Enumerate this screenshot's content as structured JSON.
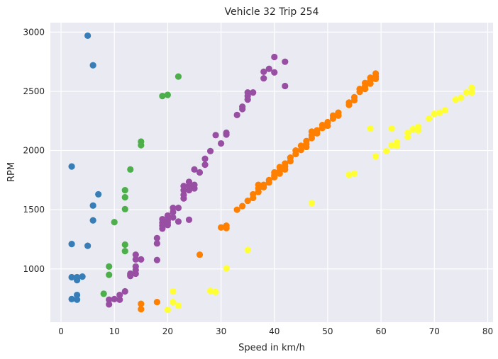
{
  "chart_data": {
    "type": "scatter",
    "title": "Vehicle 32 Trip 254",
    "xlabel": "Speed in km/h",
    "ylabel": "RPM",
    "xlim": [
      -2,
      81
    ],
    "ylim": [
      550,
      3080
    ],
    "xticks": [
      0,
      10,
      20,
      30,
      40,
      50,
      60,
      70,
      80
    ],
    "yticks": [
      1000,
      1500,
      2000,
      2500,
      3000
    ],
    "grid": true,
    "background": "#EAEAF2",
    "series": [
      {
        "color": "#377EB8",
        "points": [
          [
            2,
            1865
          ],
          [
            2,
            1210
          ],
          [
            2,
            930
          ],
          [
            2,
            745
          ],
          [
            3,
            930
          ],
          [
            3,
            905
          ],
          [
            3,
            780
          ],
          [
            3,
            740
          ],
          [
            4,
            935
          ],
          [
            5,
            2970
          ],
          [
            5,
            1195
          ],
          [
            6,
            2720
          ],
          [
            6,
            1535
          ],
          [
            6,
            1410
          ],
          [
            7,
            1630
          ]
        ]
      },
      {
        "color": "#4DAF4A",
        "points": [
          [
            8,
            790
          ],
          [
            9,
            1020
          ],
          [
            9,
            950
          ],
          [
            10,
            1395
          ],
          [
            12,
            1665
          ],
          [
            12,
            1605
          ],
          [
            12,
            1505
          ],
          [
            12,
            1205
          ],
          [
            12,
            1150
          ],
          [
            13,
            1840
          ],
          [
            15,
            2075
          ],
          [
            15,
            2045
          ],
          [
            19,
            2460
          ],
          [
            20,
            2470
          ],
          [
            22,
            2625
          ]
        ]
      },
      {
        "color": "#984EA3",
        "points": [
          [
            9,
            740
          ],
          [
            9,
            700
          ],
          [
            10,
            745
          ],
          [
            11,
            780
          ],
          [
            11,
            740
          ],
          [
            12,
            810
          ],
          [
            13,
            960
          ],
          [
            13,
            950
          ],
          [
            13,
            940
          ],
          [
            14,
            1120
          ],
          [
            14,
            1080
          ],
          [
            14,
            1020
          ],
          [
            14,
            990
          ],
          [
            14,
            960
          ],
          [
            15,
            1080
          ],
          [
            18,
            1260
          ],
          [
            18,
            1215
          ],
          [
            18,
            1075
          ],
          [
            19,
            1420
          ],
          [
            19,
            1390
          ],
          [
            19,
            1365
          ],
          [
            19,
            1340
          ],
          [
            20,
            1450
          ],
          [
            20,
            1410
          ],
          [
            20,
            1390
          ],
          [
            20,
            1370
          ],
          [
            21,
            1515
          ],
          [
            21,
            1480
          ],
          [
            21,
            1435
          ],
          [
            22,
            1515
          ],
          [
            22,
            1400
          ],
          [
            23,
            1700
          ],
          [
            23,
            1665
          ],
          [
            23,
            1625
          ],
          [
            23,
            1595
          ],
          [
            24,
            1735
          ],
          [
            24,
            1700
          ],
          [
            24,
            1665
          ],
          [
            24,
            1415
          ],
          [
            25,
            1840
          ],
          [
            25,
            1710
          ],
          [
            25,
            1680
          ],
          [
            26,
            1815
          ],
          [
            27,
            1930
          ],
          [
            27,
            1880
          ],
          [
            28,
            1995
          ],
          [
            29,
            2130
          ],
          [
            30,
            2060
          ],
          [
            31,
            2150
          ],
          [
            31,
            2135
          ],
          [
            33,
            2300
          ],
          [
            34,
            2370
          ],
          [
            34,
            2350
          ],
          [
            35,
            2490
          ],
          [
            35,
            2460
          ],
          [
            35,
            2430
          ],
          [
            36,
            2490
          ],
          [
            38,
            2665
          ],
          [
            38,
            2610
          ],
          [
            39,
            2690
          ],
          [
            40,
            2790
          ],
          [
            40,
            2660
          ],
          [
            42,
            2750
          ],
          [
            42,
            2545
          ]
        ]
      },
      {
        "color": "#FF7F00",
        "points": [
          [
            15,
            705
          ],
          [
            15,
            660
          ],
          [
            18,
            720
          ],
          [
            26,
            1120
          ],
          [
            30,
            1350
          ],
          [
            31,
            1365
          ],
          [
            31,
            1345
          ],
          [
            33,
            1500
          ],
          [
            34,
            1530
          ],
          [
            35,
            1575
          ],
          [
            36,
            1630
          ],
          [
            36,
            1600
          ],
          [
            37,
            1710
          ],
          [
            37,
            1680
          ],
          [
            37,
            1650
          ],
          [
            38,
            1710
          ],
          [
            38,
            1690
          ],
          [
            39,
            1750
          ],
          [
            39,
            1730
          ],
          [
            40,
            1815
          ],
          [
            40,
            1790
          ],
          [
            40,
            1775
          ],
          [
            41,
            1860
          ],
          [
            41,
            1830
          ],
          [
            41,
            1805
          ],
          [
            42,
            1890
          ],
          [
            42,
            1865
          ],
          [
            42,
            1840
          ],
          [
            43,
            1940
          ],
          [
            43,
            1910
          ],
          [
            44,
            2000
          ],
          [
            44,
            1970
          ],
          [
            45,
            2040
          ],
          [
            45,
            2005
          ],
          [
            46,
            2080
          ],
          [
            46,
            2055
          ],
          [
            46,
            2030
          ],
          [
            47,
            2160
          ],
          [
            47,
            2130
          ],
          [
            47,
            2105
          ],
          [
            48,
            2170
          ],
          [
            48,
            2145
          ],
          [
            49,
            2215
          ],
          [
            49,
            2190
          ],
          [
            50,
            2240
          ],
          [
            50,
            2210
          ],
          [
            51,
            2295
          ],
          [
            51,
            2270
          ],
          [
            52,
            2320
          ],
          [
            52,
            2295
          ],
          [
            54,
            2405
          ],
          [
            54,
            2385
          ],
          [
            55,
            2450
          ],
          [
            55,
            2425
          ],
          [
            56,
            2520
          ],
          [
            56,
            2495
          ],
          [
            57,
            2570
          ],
          [
            57,
            2545
          ],
          [
            57,
            2520
          ],
          [
            58,
            2615
          ],
          [
            58,
            2590
          ],
          [
            58,
            2565
          ],
          [
            59,
            2650
          ],
          [
            59,
            2625
          ],
          [
            59,
            2605
          ]
        ]
      },
      {
        "color": "#FFFF33",
        "points": [
          [
            20,
            655
          ],
          [
            21,
            810
          ],
          [
            21,
            720
          ],
          [
            22,
            690
          ],
          [
            28,
            815
          ],
          [
            29,
            805
          ],
          [
            31,
            1005
          ],
          [
            35,
            1160
          ],
          [
            47,
            1555
          ],
          [
            54,
            1795
          ],
          [
            55,
            1805
          ],
          [
            58,
            2185
          ],
          [
            59,
            1950
          ],
          [
            61,
            1995
          ],
          [
            62,
            2185
          ],
          [
            62,
            2045
          ],
          [
            63,
            2070
          ],
          [
            63,
            2040
          ],
          [
            65,
            2150
          ],
          [
            65,
            2115
          ],
          [
            66,
            2180
          ],
          [
            67,
            2200
          ],
          [
            67,
            2170
          ],
          [
            69,
            2270
          ],
          [
            70,
            2310
          ],
          [
            71,
            2320
          ],
          [
            72,
            2340
          ],
          [
            74,
            2430
          ],
          [
            75,
            2445
          ],
          [
            76,
            2490
          ],
          [
            77,
            2530
          ],
          [
            77,
            2490
          ]
        ]
      }
    ]
  }
}
